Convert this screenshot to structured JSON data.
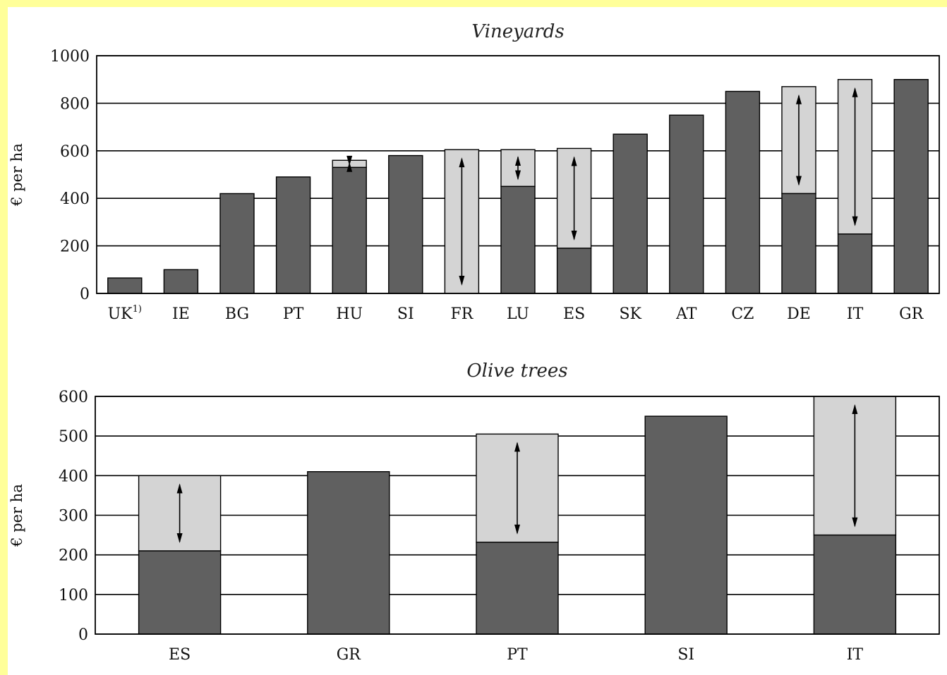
{
  "chart_data": [
    {
      "type": "bar",
      "title": "Vineyards",
      "ylabel": "€ per ha",
      "xlabel": "",
      "ylim": [
        0,
        1000
      ],
      "yticks": [
        0,
        200,
        400,
        600,
        800,
        1000
      ],
      "grid": true,
      "categories": [
        "UK",
        "IE",
        "BG",
        "PT",
        "HU",
        "SI",
        "FR",
        "LU",
        "ES",
        "SK",
        "AT",
        "CZ",
        "DE",
        "IT",
        "GR"
      ],
      "category_footnotes": {
        "UK": "1)"
      },
      "series": [
        {
          "values": [
            65,
            100,
            420,
            490,
            530,
            580,
            0,
            450,
            190,
            670,
            750,
            850,
            420,
            250,
            900
          ]
        },
        {
          "values": [
            65,
            100,
            420,
            490,
            560,
            580,
            605,
            605,
            610,
            670,
            750,
            850,
            870,
            900,
            900
          ]
        }
      ],
      "range_arrows": [
        false,
        false,
        false,
        false,
        true,
        false,
        true,
        true,
        true,
        false,
        false,
        false,
        true,
        true,
        false
      ]
    },
    {
      "type": "bar",
      "title": "Olive trees",
      "ylabel": "€ per ha",
      "xlabel": "",
      "ylim": [
        0,
        600
      ],
      "yticks": [
        0,
        100,
        200,
        300,
        400,
        500,
        600
      ],
      "grid": true,
      "categories": [
        "ES",
        "GR",
        "PT",
        "SI",
        "IT"
      ],
      "series": [
        {
          "values": [
            210,
            410,
            232,
            550,
            250
          ]
        },
        {
          "values": [
            400,
            410,
            505,
            550,
            600
          ]
        }
      ],
      "range_arrows": [
        true,
        false,
        true,
        false,
        true
      ]
    }
  ],
  "colors": {
    "page_border": "#ffff99",
    "bar_dark": "#606060",
    "bar_light": "#d4d4d4",
    "axis": "#000000"
  }
}
